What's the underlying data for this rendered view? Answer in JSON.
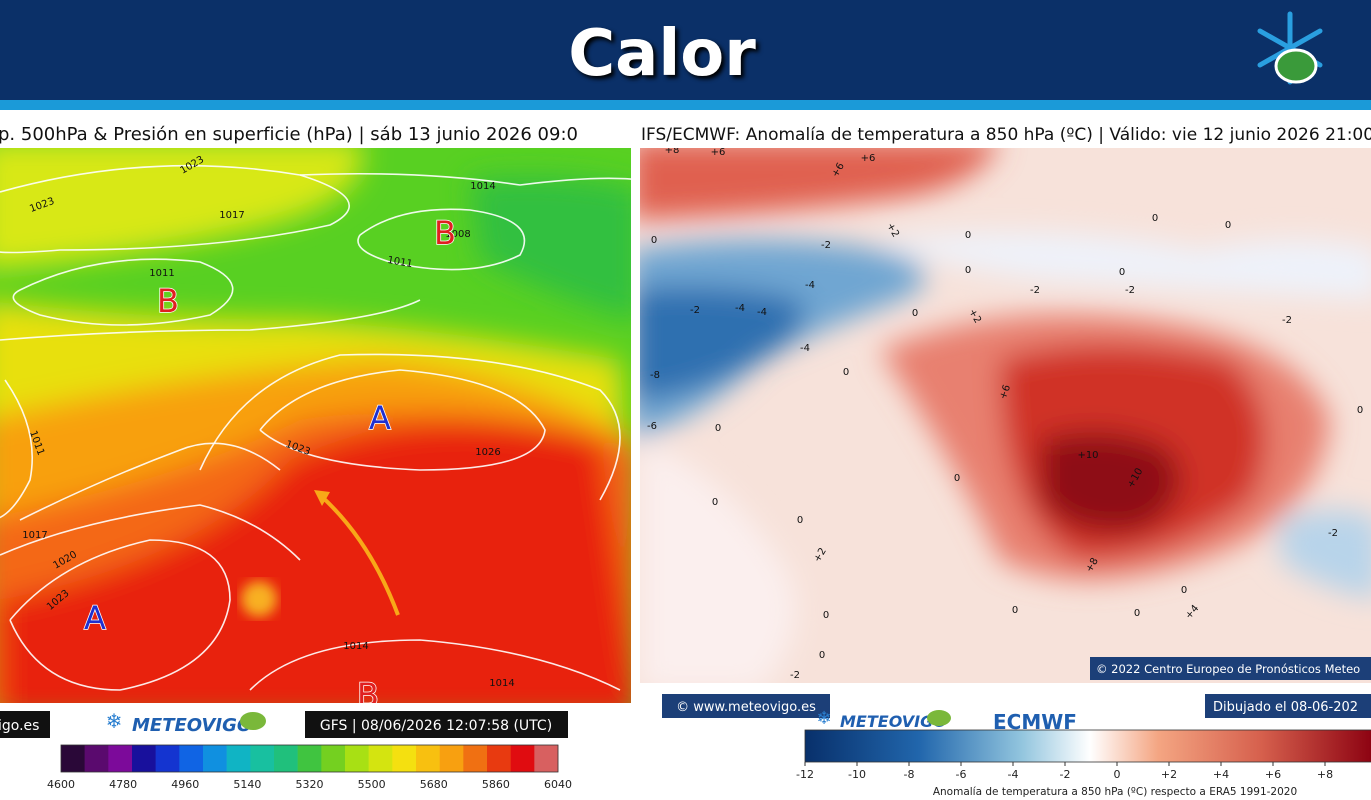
{
  "header": {
    "title": "Calor"
  },
  "left_panel": {
    "title": "p. 500hPa & Presión en superficie (hPa) | sáb 13 junio 2026 09:0",
    "map_labels": [
      "1023",
      "1023",
      "1017",
      "1011",
      "1014",
      "1008",
      "1011",
      "1023",
      "1026",
      "1011",
      "1017",
      "1020",
      "1023",
      "1014",
      "1014",
      "B",
      "B",
      "A",
      "A",
      "B"
    ],
    "footer": {
      "site": "igo.es",
      "logo": "METEOVIGO",
      "run": "GFS | 08/06/2026 12:07:58 (UTC)"
    },
    "colorbar": {
      "ticks": [
        4600,
        4780,
        4960,
        5140,
        5320,
        5500,
        5680,
        5860,
        6040
      ]
    }
  },
  "right_panel": {
    "title": "IFS/ECMWF: Anomalía de temperatura a 850 hPa (ºC) | Válido: vie 12 junio 2026 21:00",
    "map_labels": [
      "+8",
      "+6",
      "+6",
      "+6",
      "+2",
      "0",
      "0",
      "0",
      "-2",
      "0",
      "0",
      "0",
      "-2",
      "-2",
      "-4",
      "-2",
      "-4",
      "-4",
      "-4",
      "0",
      "+2",
      "-2",
      "-8",
      "0",
      "+6",
      "-6",
      "0",
      "+10",
      "+10",
      "0",
      "0",
      "0",
      "0",
      "+8",
      "+2",
      "-2",
      "+4",
      "0",
      "0",
      "0",
      "-2",
      "0",
      "0"
    ],
    "copyright": "© 2022 Centro Europeo de Pronósticos Meteo",
    "footer": {
      "site": "© www.meteovigo.es",
      "drawn": "Dibujado el 08-06-202",
      "logo": "METEOVIGO",
      "ecmwf": "ECMWF"
    },
    "colorbar": {
      "ticks": [
        "-12",
        "-10",
        "-8",
        "-6",
        "-4",
        "-2",
        "0",
        "+2",
        "+4",
        "+6",
        "+8",
        "+"
      ],
      "caption": "Anomalía de temperatura a 850 hPa (ºC) respecto a ERA5 1991-2020"
    }
  }
}
